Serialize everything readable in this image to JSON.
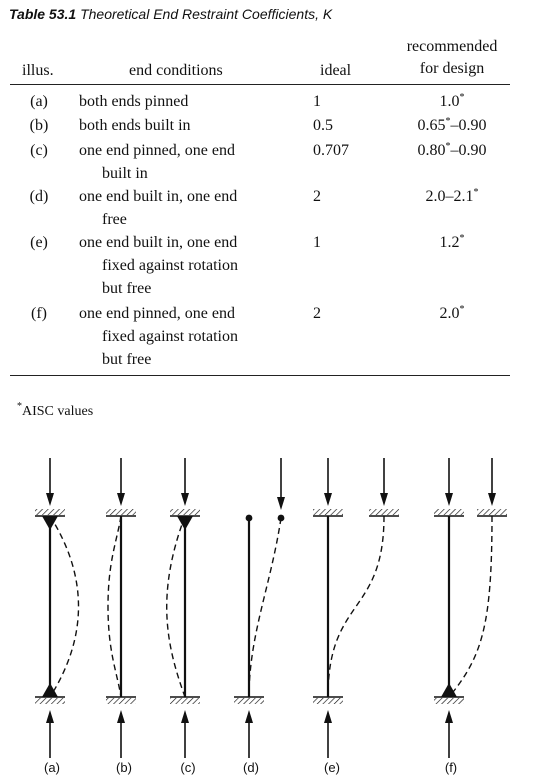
{
  "table": {
    "number": "Table 53.1",
    "title": "Theoretical End Restraint Coefficients, K",
    "headers": {
      "illus": "illus.",
      "end_conditions": "end conditions",
      "ideal": "ideal",
      "recommended_line1": "recommended",
      "recommended_line2": "for design"
    },
    "rows": [
      {
        "illus": "(a)",
        "lines": [
          "both ends pinned"
        ],
        "ideal": "1",
        "rec": "1.0",
        "rec_star": "*",
        "rec_rest": ""
      },
      {
        "illus": "(b)",
        "lines": [
          "both ends built in"
        ],
        "ideal": "0.5",
        "rec": "0.65",
        "rec_star": "*",
        "rec_rest": "–0.90"
      },
      {
        "illus": "(c)",
        "lines": [
          "one end pinned, one end",
          "built in"
        ],
        "ideal": "0.707",
        "rec": "0.80",
        "rec_star": "*",
        "rec_rest": "–0.90"
      },
      {
        "illus": "(d)",
        "lines": [
          "one end built in, one end",
          "free"
        ],
        "ideal": "2",
        "rec": "2.0–2.1",
        "rec_star": "*",
        "rec_rest": ""
      },
      {
        "illus": "(e)",
        "lines": [
          "one end built in, one end",
          "fixed against rotation",
          "but free"
        ],
        "ideal": "1",
        "rec": "1.2",
        "rec_star": "*",
        "rec_rest": ""
      },
      {
        "illus": "(f)",
        "lines": [
          "one end pinned, one end",
          "fixed against rotation",
          "but free"
        ],
        "ideal": "2",
        "rec": "2.0",
        "rec_star": "*",
        "rec_rest": ""
      }
    ],
    "footnote_mark": "*",
    "footnote": "AISC values"
  },
  "figure": {
    "labels": [
      "(a)",
      "(b)",
      "(c)",
      "(d)",
      "(e)",
      "(f)"
    ]
  }
}
